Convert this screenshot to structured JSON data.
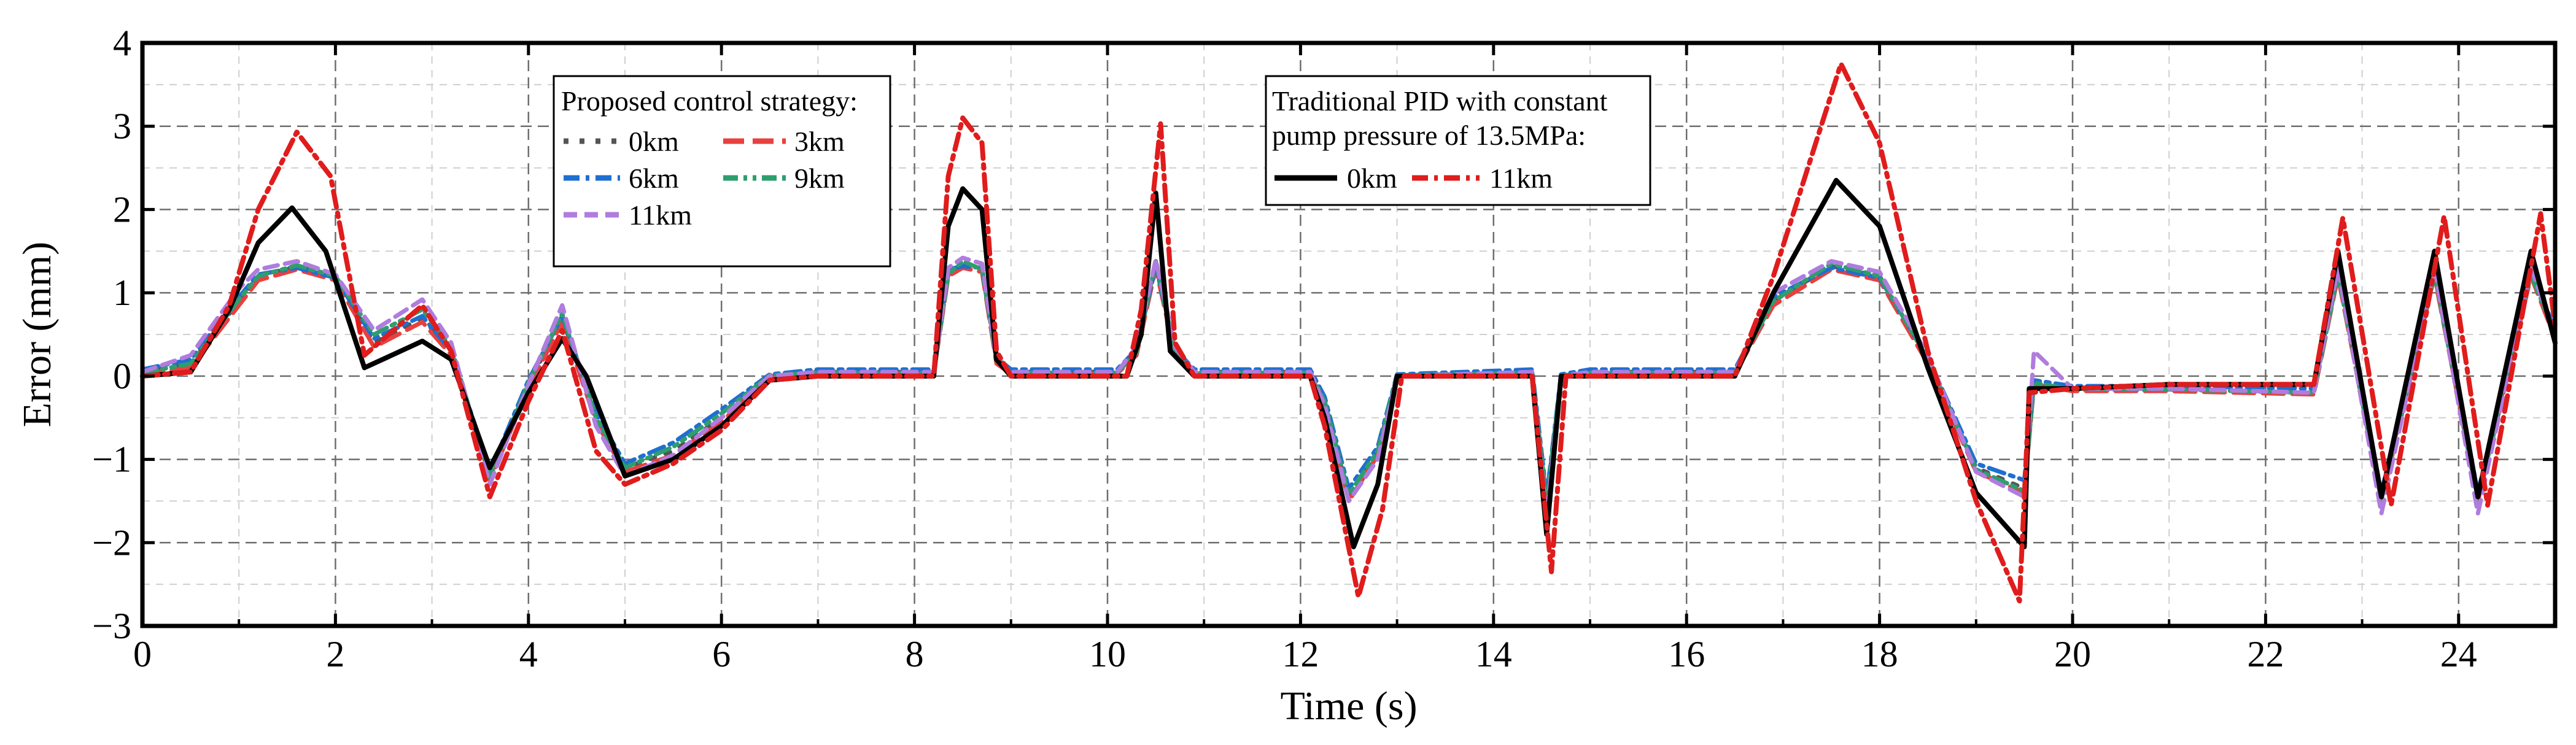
{
  "chart_data": {
    "type": "line",
    "xlabel": "Time (s)",
    "ylabel": "Error (mm)",
    "xlim": [
      0,
      25
    ],
    "ylim": [
      -3,
      4
    ],
    "xticks": [
      0,
      2,
      4,
      6,
      8,
      10,
      12,
      14,
      16,
      18,
      20,
      22,
      24
    ],
    "yticks": [
      -3,
      -2,
      -1,
      0,
      1,
      2,
      3,
      4
    ],
    "grid": true,
    "legend_proposed": {
      "title": "Proposed control strategy:",
      "entries": [
        "0km",
        "3km",
        "6km",
        "9km",
        "11km"
      ],
      "placement": "top-center-left"
    },
    "legend_pid": {
      "title_line1": "Traditional PID with constant",
      "title_line2": "pump pressure of 13.5MPa:",
      "entries": [
        "0km",
        "11km"
      ],
      "placement": "top-center"
    },
    "series": [
      {
        "name": "Proposed 0km",
        "group": "proposed",
        "color": "#555555",
        "dash": "dot-dash-short",
        "x": [
          0,
          0.5,
          1,
          1.2,
          1.6,
          2,
          2.4,
          2.9,
          3.2,
          3.6,
          4,
          4.35,
          4.7,
          5,
          5.5,
          6,
          6.5,
          7,
          8.2,
          8.35,
          8.5,
          8.7,
          8.85,
          9,
          10.1,
          10.3,
          10.5,
          10.7,
          10.9,
          12.1,
          12.25,
          12.5,
          12.8,
          13,
          14.4,
          14.55,
          14.7,
          15,
          16.5,
          16.9,
          17.5,
          18,
          18.5,
          19,
          19.5,
          19.6,
          20,
          21,
          22.5,
          22.75,
          23.2,
          23.75,
          24.2,
          24.75,
          25
        ],
        "values": [
          0.05,
          0.15,
          0.9,
          1.2,
          1.32,
          1.2,
          0.4,
          0.7,
          0.3,
          -1.2,
          -0.1,
          0.7,
          -0.5,
          -1.1,
          -0.9,
          -0.5,
          0,
          0.05,
          0.05,
          1.25,
          1.35,
          1.3,
          0.2,
          0.05,
          0.05,
          0.3,
          1.35,
          0.3,
          0.05,
          0.05,
          -0.3,
          -1.45,
          -0.9,
          0,
          0.05,
          -1.5,
          0,
          0.05,
          0.05,
          0.9,
          1.32,
          1.2,
          0.2,
          -1.1,
          -1.35,
          -0.1,
          -0.15,
          -0.15,
          -0.2,
          1.25,
          -1.45,
          1.25,
          -1.45,
          1.25,
          0.5
        ]
      },
      {
        "name": "Proposed 3km",
        "group": "proposed",
        "color": "#e8403f",
        "dash": "long-dash",
        "x": [
          0,
          0.5,
          1,
          1.2,
          1.6,
          2,
          2.4,
          2.9,
          3.2,
          3.6,
          4,
          4.35,
          4.7,
          5,
          5.5,
          6,
          6.5,
          7,
          8.2,
          8.35,
          8.5,
          8.7,
          8.85,
          9,
          10.1,
          10.3,
          10.5,
          10.7,
          10.9,
          12.1,
          12.25,
          12.5,
          12.8,
          13,
          14.4,
          14.55,
          14.7,
          15,
          16.5,
          16.9,
          17.5,
          18,
          18.5,
          19,
          19.5,
          19.6,
          20,
          21,
          22.5,
          22.75,
          23.2,
          23.75,
          24.2,
          24.75,
          25
        ],
        "values": [
          0.03,
          0.1,
          0.85,
          1.15,
          1.28,
          1.15,
          0.35,
          0.65,
          0.25,
          -1.25,
          -0.15,
          0.65,
          -0.55,
          -1.15,
          -0.95,
          -0.55,
          0,
          0.03,
          0.03,
          1.2,
          1.3,
          1.25,
          0.15,
          0.03,
          0.03,
          0.25,
          1.3,
          0.25,
          0.03,
          0.03,
          -0.35,
          -1.5,
          -0.95,
          0,
          0.03,
          -1.55,
          0,
          0.03,
          0.03,
          0.85,
          1.28,
          1.15,
          0.15,
          -1.15,
          -1.4,
          -0.1,
          -0.18,
          -0.18,
          -0.22,
          1.2,
          -1.5,
          1.2,
          -1.5,
          1.2,
          0.45
        ]
      },
      {
        "name": "Proposed 6km",
        "group": "proposed",
        "color": "#1f6fd1",
        "dash": "dash-dot",
        "x": [
          0,
          0.5,
          1,
          1.2,
          1.6,
          2,
          2.4,
          2.9,
          3.2,
          3.6,
          4,
          4.35,
          4.7,
          5,
          5.5,
          6,
          6.5,
          7,
          8.2,
          8.35,
          8.5,
          8.7,
          8.85,
          9,
          10.1,
          10.3,
          10.5,
          10.7,
          10.9,
          12.1,
          12.25,
          12.5,
          12.8,
          13,
          14.4,
          14.55,
          14.7,
          15,
          16.5,
          16.9,
          17.5,
          18,
          18.5,
          19,
          19.5,
          19.6,
          20,
          21,
          22.5,
          22.75,
          23.2,
          23.75,
          24.2,
          24.75,
          25
        ],
        "values": [
          0.08,
          0.2,
          0.95,
          1.22,
          1.3,
          1.18,
          0.45,
          0.72,
          0.3,
          -1.15,
          -0.05,
          0.72,
          -0.45,
          -1.05,
          -0.8,
          -0.4,
          0.02,
          0.08,
          0.08,
          1.28,
          1.32,
          1.3,
          0.22,
          0.08,
          0.08,
          0.32,
          1.32,
          0.32,
          0.08,
          0.08,
          -0.25,
          -1.35,
          -0.85,
          0.02,
          0.08,
          -1.45,
          0.02,
          0.08,
          0.08,
          0.95,
          1.3,
          1.18,
          0.22,
          -1.05,
          -1.25,
          -0.05,
          -0.12,
          -0.12,
          -0.15,
          1.28,
          -1.4,
          1.28,
          -1.4,
          1.28,
          0.55
        ]
      },
      {
        "name": "Proposed 9km",
        "group": "proposed",
        "color": "#2e9e6e",
        "dash": "dash-dot-dot",
        "x": [
          0,
          0.5,
          1,
          1.2,
          1.6,
          2,
          2.4,
          2.9,
          3.2,
          3.6,
          4,
          4.35,
          4.7,
          5,
          5.5,
          6,
          6.5,
          7,
          8.2,
          8.35,
          8.5,
          8.7,
          8.85,
          9,
          10.1,
          10.3,
          10.5,
          10.7,
          10.9,
          12.1,
          12.25,
          12.5,
          12.8,
          13,
          14.4,
          14.55,
          14.7,
          15,
          16.5,
          16.9,
          17.5,
          18,
          18.5,
          19,
          19.5,
          19.6,
          20,
          21,
          22.5,
          22.75,
          23.2,
          23.75,
          24.2,
          24.75,
          25
        ],
        "values": [
          0.04,
          0.15,
          0.92,
          1.2,
          1.33,
          1.2,
          0.5,
          0.8,
          0.35,
          -1.22,
          -0.08,
          0.75,
          -0.5,
          -1.1,
          -0.85,
          -0.45,
          0.01,
          0.04,
          0.04,
          1.22,
          1.38,
          1.28,
          0.18,
          0.04,
          0.04,
          0.28,
          1.38,
          0.28,
          0.04,
          0.04,
          -0.3,
          -1.42,
          -0.9,
          0.01,
          0.04,
          -1.52,
          0.01,
          0.04,
          0.04,
          0.9,
          1.35,
          1.2,
          0.2,
          -1.12,
          -1.38,
          -0.08,
          -0.16,
          -0.16,
          -0.2,
          1.22,
          -1.48,
          1.22,
          -1.48,
          1.22,
          0.5
        ]
      },
      {
        "name": "Proposed 11km",
        "group": "proposed",
        "color": "#b07cde",
        "dash": "dash",
        "x": [
          0,
          0.5,
          1,
          1.2,
          1.6,
          2,
          2.4,
          2.9,
          3.2,
          3.6,
          4,
          4.35,
          4.7,
          5,
          5.5,
          6,
          6.5,
          7,
          8.2,
          8.35,
          8.5,
          8.7,
          8.85,
          9,
          10.1,
          10.3,
          10.5,
          10.7,
          10.9,
          12.1,
          12.25,
          12.5,
          12.8,
          13,
          14.4,
          14.55,
          14.7,
          15,
          16.5,
          16.9,
          17.5,
          18,
          18.5,
          19,
          19.5,
          19.6,
          20,
          21,
          22.5,
          22.75,
          23.2,
          23.75,
          24.2,
          24.75,
          25
        ],
        "values": [
          0.05,
          0.25,
          1.05,
          1.28,
          1.38,
          1.22,
          0.55,
          0.92,
          0.4,
          -1.3,
          -0.1,
          0.85,
          -0.6,
          -1.2,
          -0.95,
          -0.5,
          0,
          0.05,
          0.05,
          1.3,
          1.42,
          1.35,
          0.2,
          0.05,
          0.05,
          0.35,
          1.4,
          0.35,
          0.05,
          0.05,
          -0.35,
          -1.5,
          -1.0,
          0,
          0.05,
          -1.7,
          0,
          0.05,
          0.05,
          1.0,
          1.38,
          1.25,
          0.25,
          -1.15,
          -1.45,
          0.3,
          -0.15,
          -0.15,
          -0.2,
          1.3,
          -1.65,
          1.3,
          -1.65,
          1.3,
          0.5
        ]
      },
      {
        "name": "PID 0km",
        "group": "pid",
        "color": "#000000",
        "dash": "solid",
        "x": [
          0,
          0.5,
          0.9,
          1.2,
          1.55,
          1.9,
          2.3,
          2.9,
          3.2,
          3.6,
          4,
          4.35,
          4.6,
          5,
          5.5,
          6,
          6.5,
          7,
          8.2,
          8.35,
          8.5,
          8.7,
          8.85,
          9,
          10.2,
          10.35,
          10.5,
          10.65,
          10.9,
          12.1,
          12.25,
          12.55,
          12.8,
          13,
          14.4,
          14.55,
          14.7,
          15,
          16.5,
          16.9,
          17.55,
          18,
          18.5,
          19,
          19.5,
          19.55,
          20,
          21,
          22.5,
          22.75,
          23.2,
          23.75,
          24.2,
          24.75,
          25
        ],
        "values": [
          0,
          0.05,
          0.8,
          1.6,
          2.02,
          1.5,
          0.1,
          0.42,
          0.2,
          -1.1,
          -0.2,
          0.45,
          0,
          -1.2,
          -1.0,
          -0.6,
          -0.05,
          0,
          0,
          1.8,
          2.25,
          2.0,
          0.2,
          0,
          0,
          0.5,
          2.2,
          0.3,
          0,
          0,
          -0.5,
          -2.05,
          -1.3,
          0,
          0,
          -1.9,
          0,
          0,
          0,
          1.0,
          2.35,
          1.8,
          0.1,
          -1.4,
          -2.05,
          -0.15,
          -0.15,
          -0.1,
          -0.1,
          1.5,
          -1.45,
          1.5,
          -1.45,
          1.5,
          0.4
        ]
      },
      {
        "name": "PID 11km",
        "group": "pid",
        "color": "#e01c1c",
        "dash": "dash-dot",
        "x": [
          0,
          0.5,
          0.9,
          1.2,
          1.6,
          1.95,
          2.3,
          2.9,
          3.2,
          3.6,
          4,
          4.35,
          4.7,
          5,
          5.5,
          6,
          6.5,
          7,
          8.2,
          8.35,
          8.5,
          8.7,
          8.85,
          9,
          10.2,
          10.35,
          10.55,
          10.7,
          10.9,
          12.1,
          12.25,
          12.6,
          12.85,
          13.05,
          14.4,
          14.6,
          14.75,
          15,
          16.5,
          16.9,
          17.6,
          18,
          18.5,
          19,
          19.45,
          19.55,
          20,
          21,
          22.5,
          22.8,
          23.3,
          23.85,
          24.3,
          24.85,
          25
        ],
        "values": [
          0,
          0.05,
          0.85,
          2.0,
          2.93,
          2.4,
          0.25,
          0.85,
          0.3,
          -1.45,
          -0.3,
          0.55,
          -0.9,
          -1.3,
          -1.05,
          -0.65,
          -0.05,
          0,
          0,
          2.4,
          3.1,
          2.8,
          0.3,
          0,
          0,
          0.8,
          3.03,
          0.4,
          0,
          0,
          -0.6,
          -2.65,
          -1.6,
          0,
          0,
          -2.35,
          0,
          0,
          0,
          1.2,
          3.75,
          2.8,
          0.3,
          -1.5,
          -2.7,
          -0.2,
          -0.15,
          -0.1,
          -0.1,
          1.9,
          -1.55,
          1.92,
          -1.55,
          1.95,
          0.6
        ]
      }
    ]
  }
}
